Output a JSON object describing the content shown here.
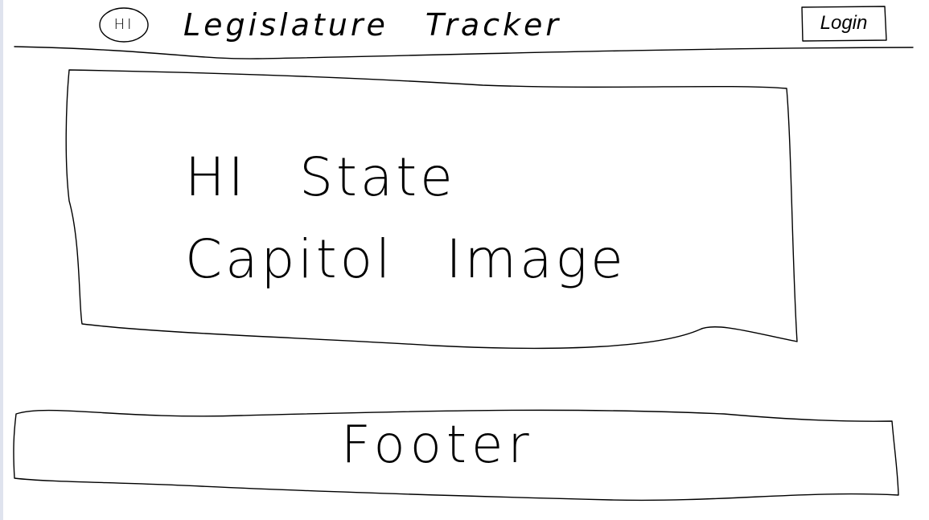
{
  "header": {
    "logo_text": "HI",
    "app_title": "Legislature Tracker",
    "login_label": "Login"
  },
  "hero": {
    "image_caption": "HI State Capitol Image"
  },
  "footer": {
    "label": "Footer"
  }
}
